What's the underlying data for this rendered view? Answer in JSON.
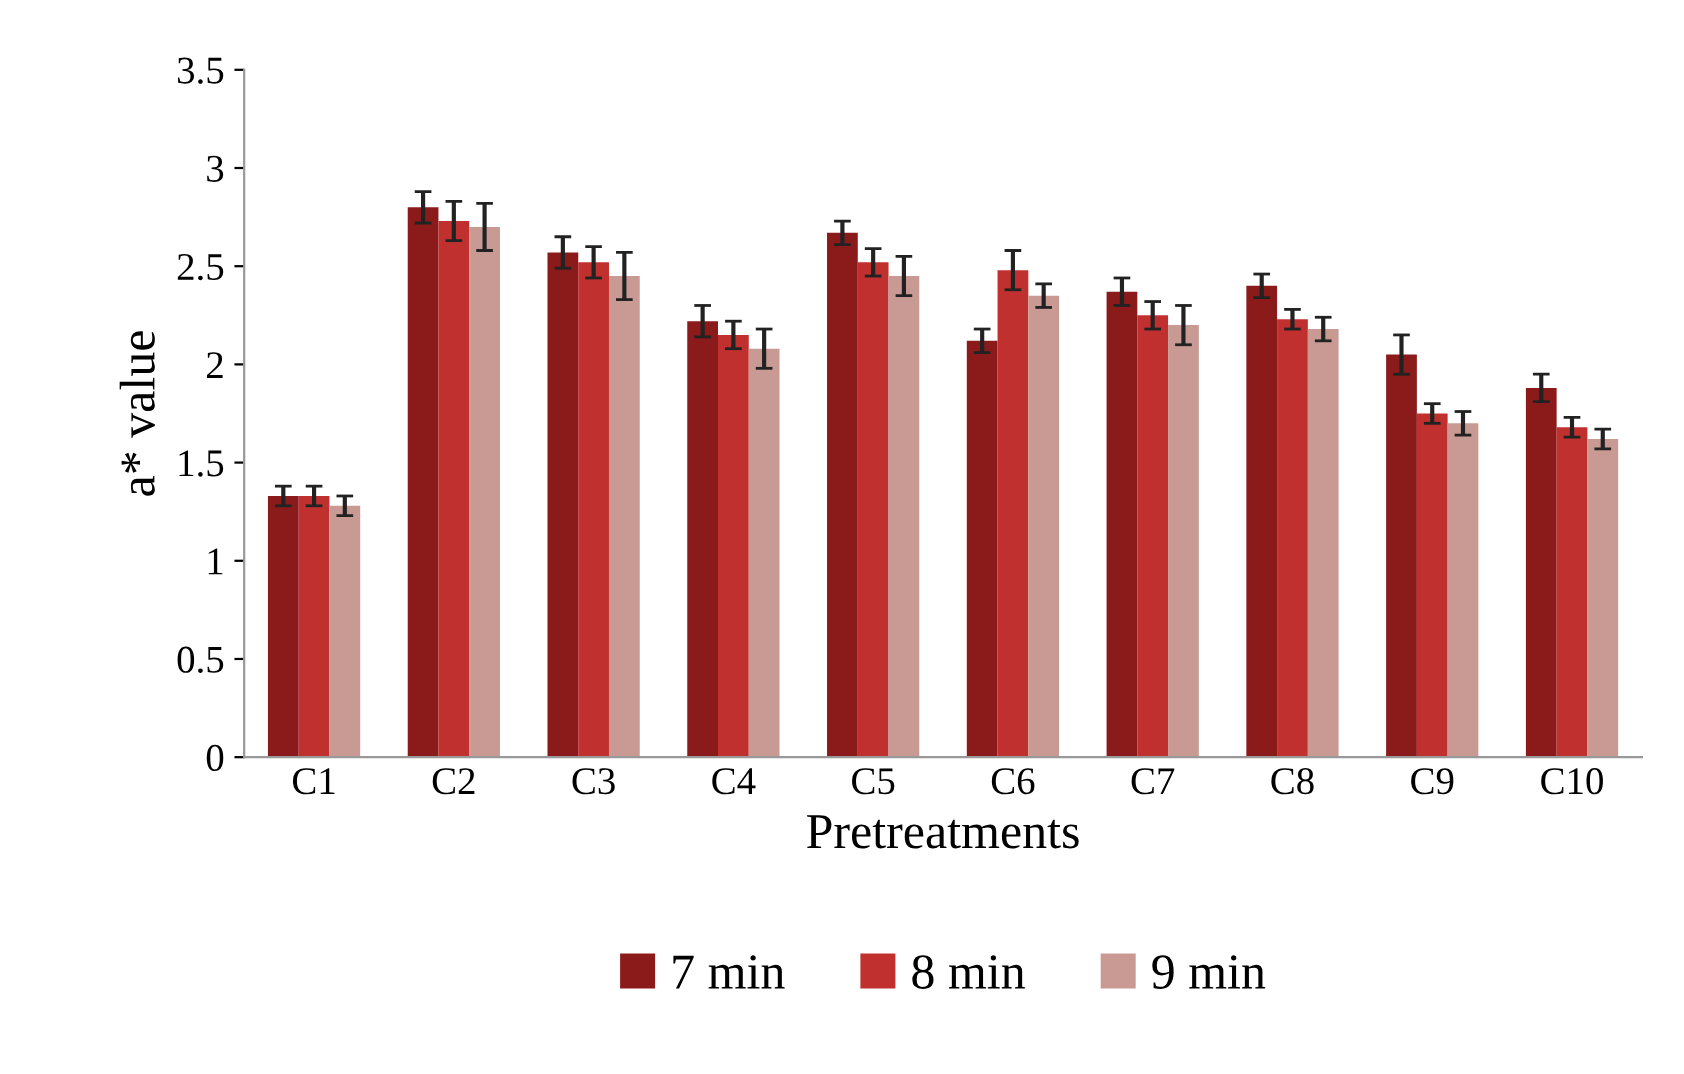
{
  "chart_data": {
    "type": "bar",
    "xlabel": "Pretreatments",
    "ylabel": "a* value",
    "categories": [
      "C1",
      "C2",
      "C3",
      "C4",
      "C5",
      "C6",
      "C7",
      "C8",
      "C9",
      "C10"
    ],
    "series": [
      {
        "name": "7 min",
        "color": "#8b1a1a",
        "values": [
          1.33,
          2.8,
          2.57,
          2.22,
          2.67,
          2.12,
          2.37,
          2.4,
          2.05,
          1.88
        ],
        "errors": [
          0.05,
          0.08,
          0.08,
          0.08,
          0.06,
          0.06,
          0.07,
          0.06,
          0.1,
          0.07
        ]
      },
      {
        "name": "8 min",
        "color": "#c0302e",
        "values": [
          1.33,
          2.73,
          2.52,
          2.15,
          2.52,
          2.48,
          2.25,
          2.23,
          1.75,
          1.68
        ],
        "errors": [
          0.05,
          0.1,
          0.08,
          0.07,
          0.07,
          0.1,
          0.07,
          0.05,
          0.05,
          0.05
        ]
      },
      {
        "name": "9 min",
        "color": "#c99a94",
        "values": [
          1.28,
          2.7,
          2.45,
          2.08,
          2.45,
          2.35,
          2.2,
          2.18,
          1.7,
          1.62
        ],
        "errors": [
          0.05,
          0.12,
          0.12,
          0.1,
          0.1,
          0.06,
          0.1,
          0.06,
          0.06,
          0.05
        ]
      }
    ],
    "ylim": [
      0,
      3.5
    ],
    "yticks": [
      0,
      0.5,
      1,
      1.5,
      2,
      2.5,
      3,
      3.5
    ],
    "grid": false,
    "legend": "bottom"
  }
}
